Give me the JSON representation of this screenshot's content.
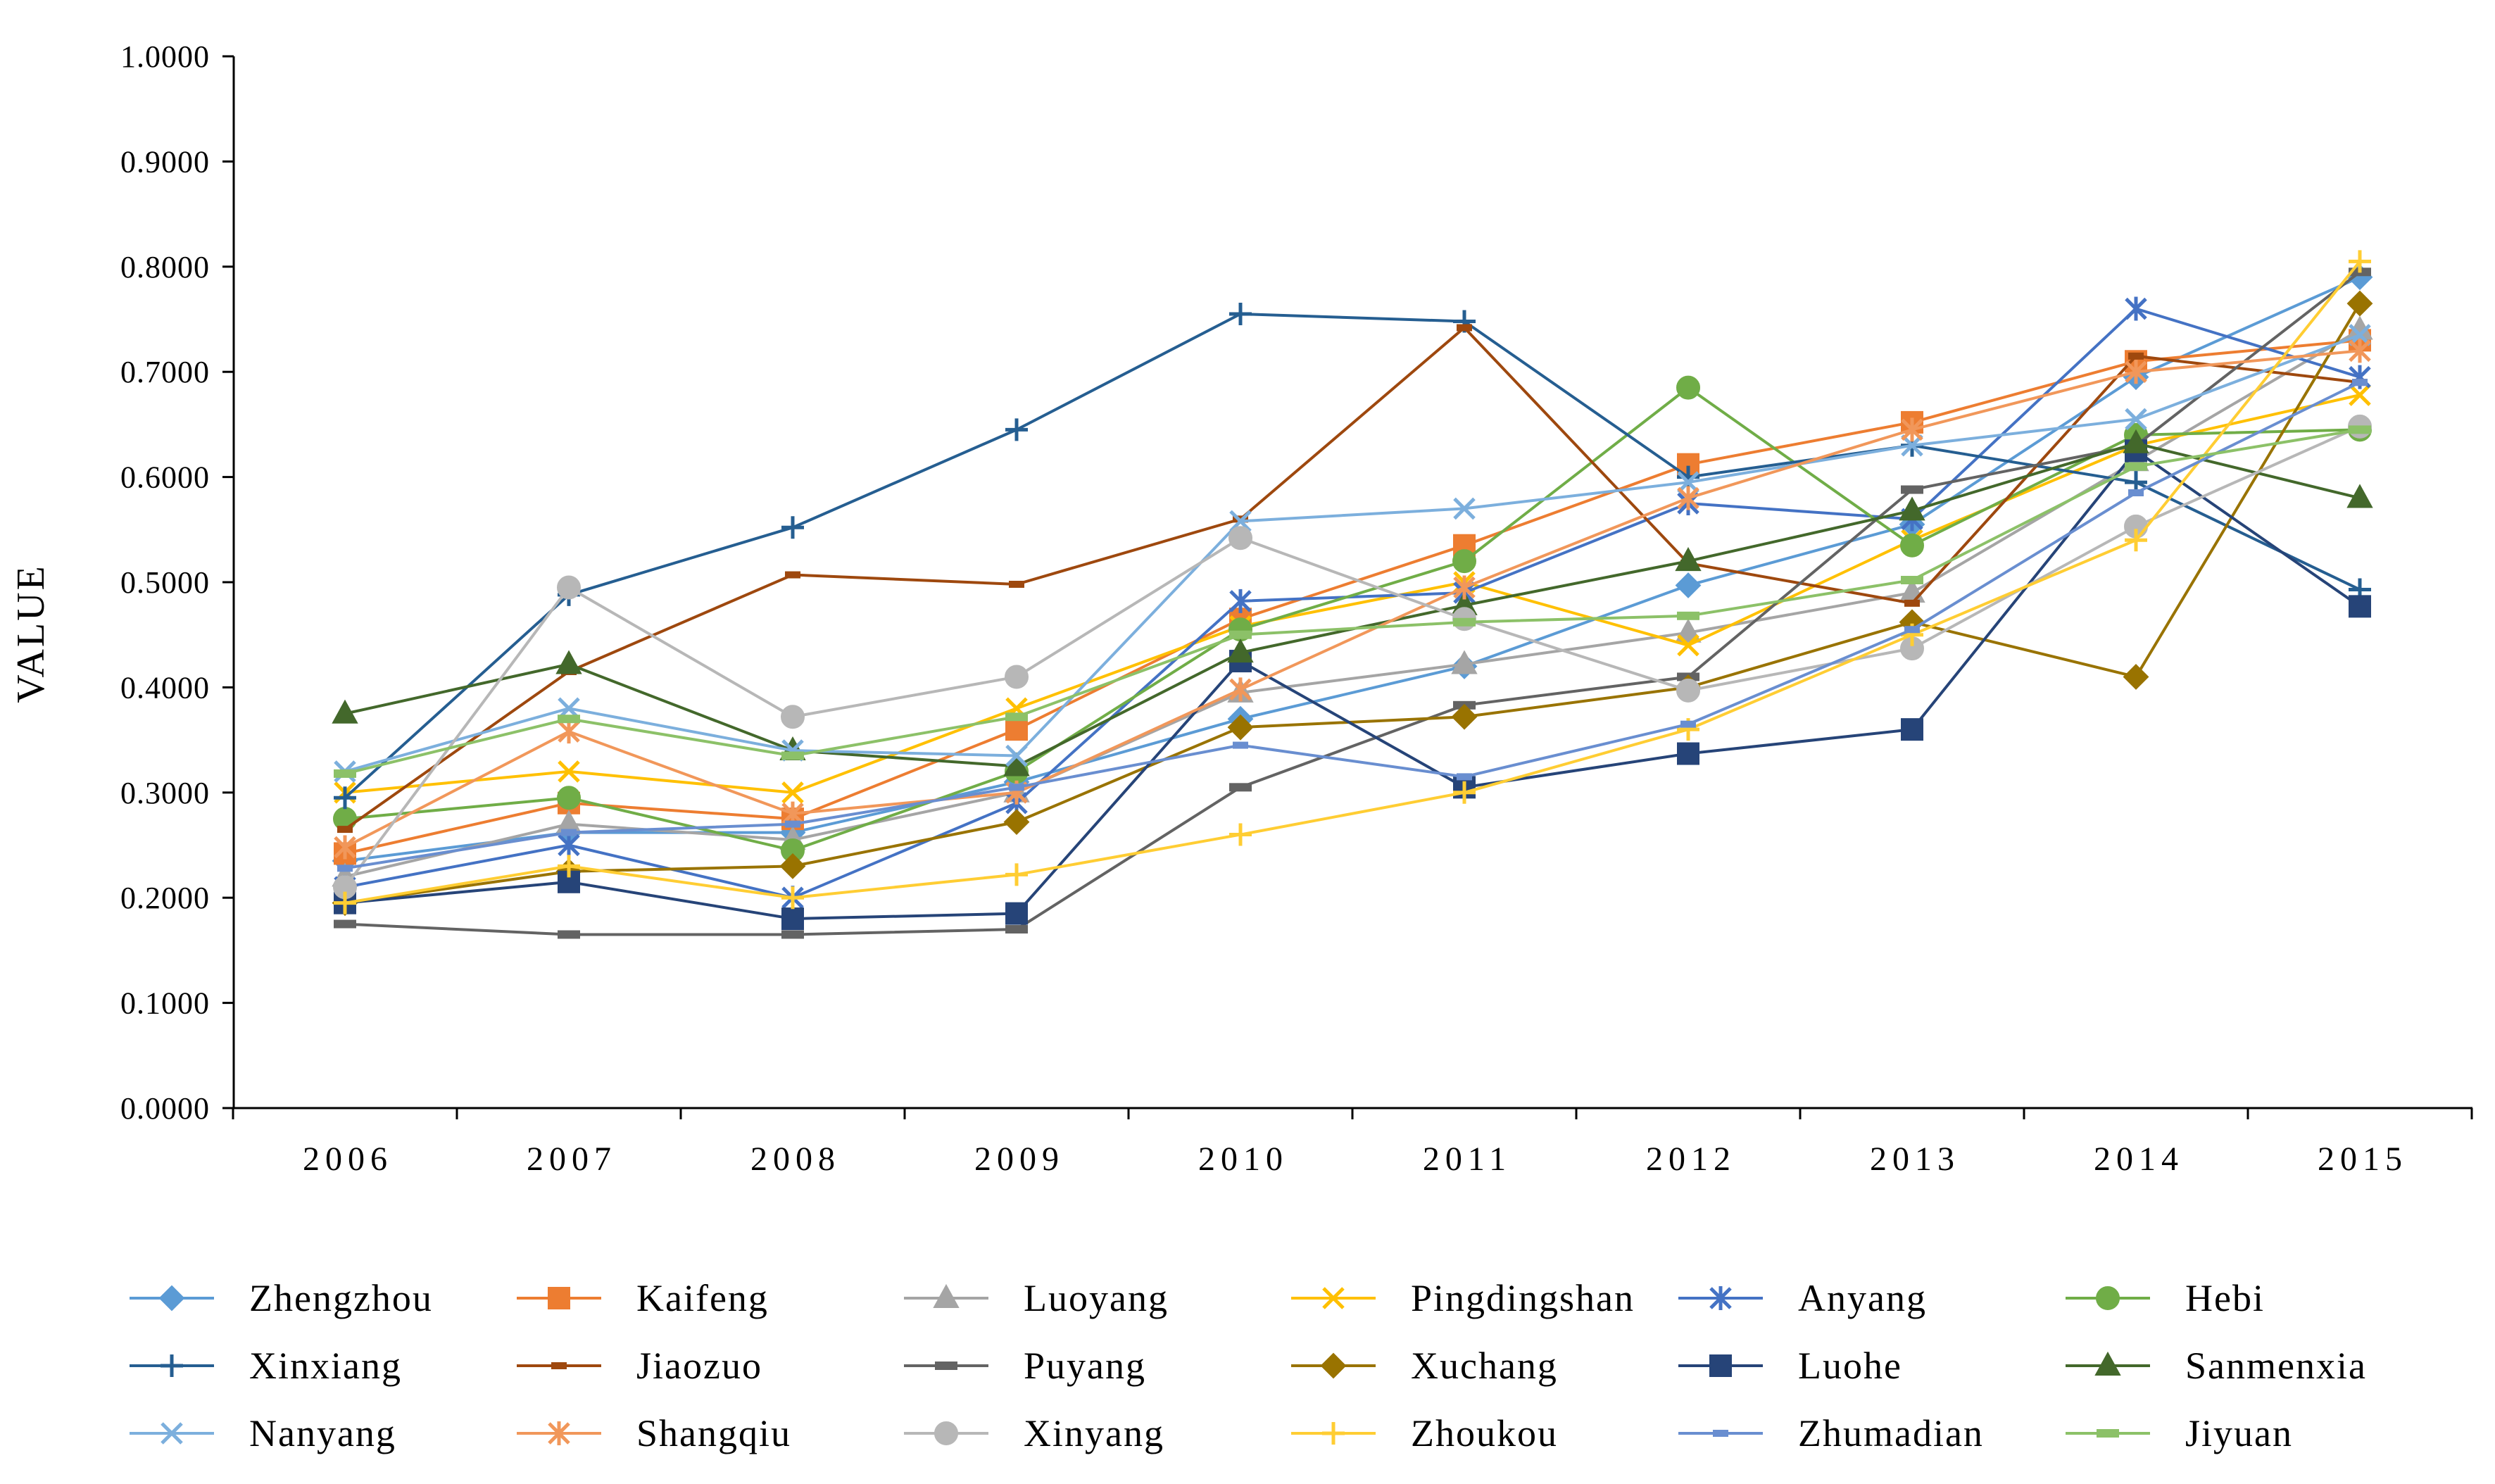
{
  "chart_data": {
    "type": "line",
    "title": "",
    "xlabel": "",
    "ylabel": "VALUE",
    "ylim": [
      0,
      1
    ],
    "y_ticks": [
      0,
      0.1,
      0.2,
      0.3,
      0.4,
      0.5,
      0.6,
      0.7,
      0.8,
      0.9,
      1.0
    ],
    "y_tick_labels": [
      "0.0000",
      "0.1000",
      "0.2000",
      "0.3000",
      "0.4000",
      "0.5000",
      "0.6000",
      "0.7000",
      "0.8000",
      "0.9000",
      "1.0000"
    ],
    "x": [
      "2006",
      "2007",
      "2008",
      "2009",
      "2010",
      "2011",
      "2012",
      "2013",
      "2014",
      "2015"
    ],
    "grid": false,
    "legend_position": "bottom",
    "series": [
      {
        "name": "Zhengzhou",
        "color": "#5b9bd5",
        "marker": "diamond",
        "values": [
          0.235,
          0.262,
          0.262,
          0.31,
          0.37,
          0.42,
          0.497,
          0.555,
          0.695,
          0.79
        ]
      },
      {
        "name": "Kaifeng",
        "color": "#ed7d31",
        "marker": "square",
        "values": [
          0.242,
          0.29,
          0.275,
          0.36,
          0.465,
          0.535,
          0.612,
          0.652,
          0.71,
          0.73
        ]
      },
      {
        "name": "Luoyang",
        "color": "#a5a5a5",
        "marker": "triangle",
        "values": [
          0.22,
          0.27,
          0.255,
          0.3,
          0.395,
          0.422,
          0.452,
          0.49,
          0.615,
          0.74
        ]
      },
      {
        "name": "Pingdingshan",
        "color": "#ffc000",
        "marker": "x",
        "values": [
          0.3,
          0.32,
          0.3,
          0.38,
          0.458,
          0.5,
          0.44,
          0.54,
          0.63,
          0.678
        ]
      },
      {
        "name": "Anyang",
        "color": "#4472c4",
        "marker": "star",
        "values": [
          0.21,
          0.25,
          0.2,
          0.29,
          0.482,
          0.49,
          0.575,
          0.56,
          0.76,
          0.695
        ]
      },
      {
        "name": "Hebi",
        "color": "#70ad47",
        "marker": "circle",
        "values": [
          0.275,
          0.295,
          0.245,
          0.32,
          0.455,
          0.52,
          0.685,
          0.535,
          0.64,
          0.645
        ]
      },
      {
        "name": "Xinxiang",
        "color": "#255e91",
        "marker": "plus",
        "values": [
          0.295,
          0.488,
          0.552,
          0.645,
          0.755,
          0.748,
          0.6,
          0.63,
          0.595,
          0.493
        ]
      },
      {
        "name": "Jiaozuo",
        "color": "#9e480e",
        "marker": "dash-small",
        "values": [
          0.265,
          0.415,
          0.507,
          0.498,
          0.56,
          0.742,
          0.518,
          0.48,
          0.715,
          0.69
        ]
      },
      {
        "name": "Puyang",
        "color": "#636363",
        "marker": "dash",
        "values": [
          0.175,
          0.165,
          0.165,
          0.17,
          0.305,
          0.383,
          0.41,
          0.588,
          0.63,
          0.795
        ]
      },
      {
        "name": "Xuchang",
        "color": "#997300",
        "marker": "diamond",
        "values": [
          0.195,
          0.225,
          0.23,
          0.272,
          0.362,
          0.372,
          0.4,
          0.462,
          0.41,
          0.765
        ]
      },
      {
        "name": "Luohe",
        "color": "#264478",
        "marker": "square",
        "values": [
          0.195,
          0.215,
          0.18,
          0.185,
          0.425,
          0.305,
          0.337,
          0.36,
          0.625,
          0.477
        ]
      },
      {
        "name": "Sanmenxia",
        "color": "#43682b",
        "marker": "triangle",
        "values": [
          0.375,
          0.422,
          0.34,
          0.325,
          0.433,
          0.478,
          0.52,
          0.568,
          0.632,
          0.58
        ]
      },
      {
        "name": "Nanyang",
        "color": "#7cafdd",
        "marker": "x",
        "values": [
          0.32,
          0.38,
          0.34,
          0.335,
          0.558,
          0.57,
          0.595,
          0.63,
          0.655,
          0.735
        ]
      },
      {
        "name": "Shangqiu",
        "color": "#f1975a",
        "marker": "star",
        "values": [
          0.248,
          0.358,
          0.28,
          0.3,
          0.398,
          0.495,
          0.58,
          0.645,
          0.7,
          0.72
        ]
      },
      {
        "name": "Xinyang",
        "color": "#b7b7b7",
        "marker": "circle",
        "values": [
          0.21,
          0.495,
          0.372,
          0.41,
          0.542,
          0.465,
          0.397,
          0.437,
          0.553,
          0.648
        ]
      },
      {
        "name": "Zhoukou",
        "color": "#ffcd33",
        "marker": "plus",
        "values": [
          0.195,
          0.23,
          0.2,
          0.222,
          0.26,
          0.3,
          0.36,
          0.45,
          0.54,
          0.805
        ]
      },
      {
        "name": "Zhumadian",
        "color": "#698ed0",
        "marker": "dash-small",
        "values": [
          0.228,
          0.262,
          0.27,
          0.305,
          0.345,
          0.315,
          0.365,
          0.455,
          0.585,
          0.69
        ]
      },
      {
        "name": "Jiyuan",
        "color": "#8cc168",
        "marker": "dash",
        "values": [
          0.318,
          0.37,
          0.335,
          0.372,
          0.45,
          0.462,
          0.468,
          0.502,
          0.61,
          0.645
        ]
      }
    ]
  }
}
